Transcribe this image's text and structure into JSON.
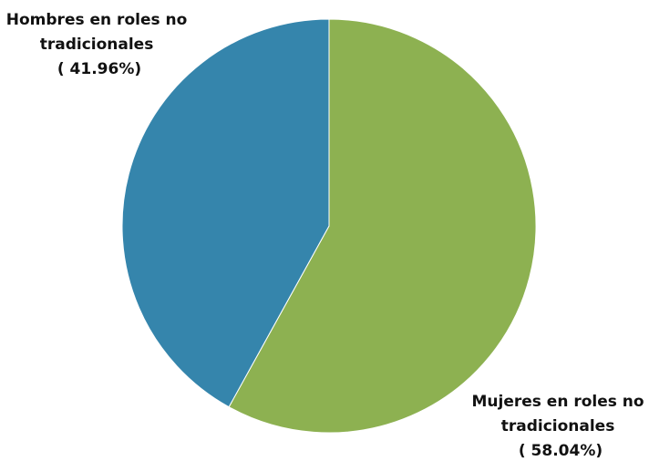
{
  "chart_data": {
    "type": "pie",
    "slices": [
      {
        "name": "Mujeres en roles no tradicionales",
        "label_lines": [
          "Mujeres en roles no",
          "tradicionales",
          "( 58.04%)"
        ],
        "value": 58.04,
        "color": "#8db151"
      },
      {
        "name": "Hombres en roles no tradicionales",
        "label_lines": [
          "Hombres en roles no",
          "tradicionales",
          "( 41.96%)"
        ],
        "value": 41.96,
        "color": "#3585ac"
      }
    ],
    "start_angle": "12 o'clock",
    "direction": "clockwise",
    "legend": "none"
  }
}
